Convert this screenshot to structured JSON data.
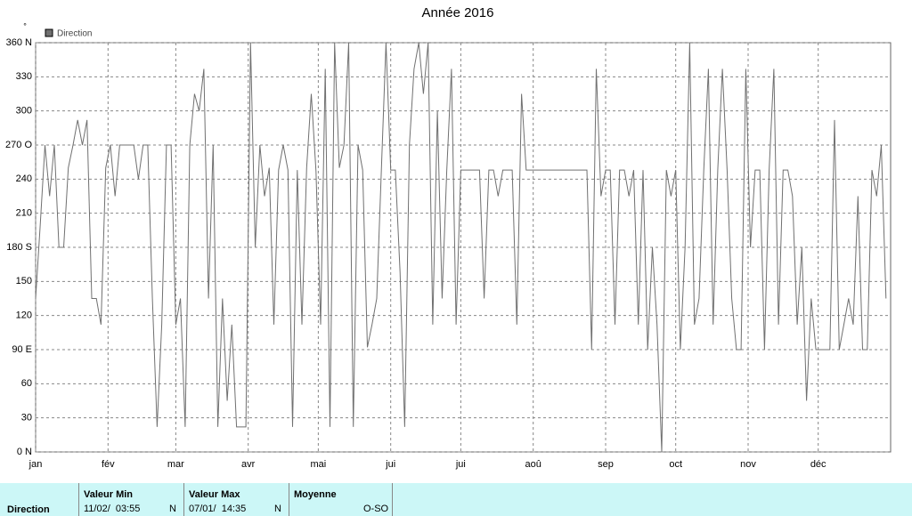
{
  "chart_data": {
    "type": "line",
    "title": "Année 2016",
    "ylabel": "°",
    "x": [
      0,
      2,
      4,
      6,
      8,
      10,
      12,
      14,
      16,
      18,
      20,
      22,
      24,
      26,
      28,
      30,
      32,
      34,
      36,
      38,
      40,
      42,
      44,
      46,
      48,
      50,
      52,
      54,
      56,
      58,
      60,
      62,
      64,
      66,
      68,
      70,
      72,
      74,
      76,
      78,
      80,
      82,
      84,
      86,
      88,
      90,
      92,
      94,
      96,
      98,
      100,
      102,
      104,
      106,
      108,
      110,
      112,
      114,
      116,
      118,
      120,
      122,
      124,
      126,
      128,
      130,
      132,
      134,
      136,
      138,
      140,
      142,
      144,
      146,
      148,
      150,
      152,
      154,
      156,
      158,
      160,
      162,
      164,
      166,
      168,
      170,
      172,
      174,
      176,
      178,
      180,
      182,
      184,
      186,
      188,
      190,
      192,
      194,
      196,
      198,
      200,
      202,
      204,
      206,
      208,
      210,
      212,
      214,
      216,
      218,
      220,
      222,
      224,
      226,
      228,
      230,
      232,
      234,
      236,
      238,
      240,
      242,
      244,
      246,
      248,
      250,
      252,
      254,
      256,
      258,
      260,
      262,
      264,
      266,
      268,
      270,
      272,
      274,
      276,
      278,
      280,
      282,
      284,
      286,
      288,
      290,
      292,
      294,
      296,
      298,
      300,
      302,
      304,
      306,
      308,
      310,
      312,
      314,
      316,
      318,
      320,
      322,
      324,
      326,
      328,
      330,
      332,
      334,
      336,
      338,
      340,
      342,
      344,
      346,
      348,
      350,
      352,
      354,
      356,
      358,
      360,
      362,
      364
    ],
    "series": [
      {
        "name": "Direction",
        "color": "#707070",
        "values": [
          135,
          200,
          270,
          225,
          270,
          180,
          180,
          250,
          270,
          292,
          270,
          292,
          135,
          135,
          112,
          250,
          270,
          225,
          270,
          270,
          270,
          270,
          240,
          270,
          270,
          135,
          22,
          112,
          270,
          270,
          112,
          135,
          22,
          270,
          315,
          300,
          337,
          135,
          270,
          22,
          135,
          45,
          112,
          22,
          22,
          22,
          360,
          180,
          270,
          225,
          250,
          112,
          248,
          270,
          248,
          22,
          248,
          112,
          250,
          315,
          247,
          112,
          337,
          22,
          360,
          250,
          270,
          360,
          22,
          270,
          248,
          92,
          112,
          135,
          248,
          360,
          248,
          248,
          158,
          22,
          270,
          337,
          360,
          315,
          360,
          112,
          300,
          135,
          247,
          337,
          112,
          248,
          248,
          248,
          248,
          248,
          135,
          248,
          248,
          225,
          248,
          248,
          248,
          112,
          315,
          248,
          248,
          248,
          248,
          248,
          248,
          248,
          248,
          248,
          248,
          248,
          248,
          248,
          248,
          90,
          337,
          225,
          248,
          248,
          112,
          248,
          248,
          225,
          248,
          112,
          248,
          90,
          180,
          112,
          0,
          248,
          225,
          248,
          90,
          180,
          360,
          112,
          135,
          248,
          337,
          112,
          248,
          337,
          248,
          135,
          90,
          90,
          337,
          180,
          248,
          248,
          90,
          248,
          337,
          112,
          248,
          248,
          225,
          112,
          180,
          45,
          135,
          90,
          90,
          90,
          90,
          292,
          90,
          112,
          135,
          112,
          225,
          90,
          90,
          248,
          225,
          270,
          135
        ]
      }
    ],
    "xlim": [
      0,
      366
    ],
    "xticks": [
      {
        "value": 0,
        "label": "jan"
      },
      {
        "value": 31,
        "label": "fév"
      },
      {
        "value": 60,
        "label": "mar"
      },
      {
        "value": 91,
        "label": "avr"
      },
      {
        "value": 121,
        "label": "mai"
      },
      {
        "value": 152,
        "label": "jui"
      },
      {
        "value": 182,
        "label": "jui"
      },
      {
        "value": 213,
        "label": "aoû"
      },
      {
        "value": 244,
        "label": "sep"
      },
      {
        "value": 274,
        "label": "oct"
      },
      {
        "value": 305,
        "label": "nov"
      },
      {
        "value": 335,
        "label": "déc"
      }
    ],
    "ylim": [
      0,
      360
    ],
    "yticks": [
      {
        "value": 0,
        "label": "0 N"
      },
      30,
      60,
      {
        "value": 90,
        "label": "90  E"
      },
      120,
      150,
      {
        "value": 180,
        "label": "180 S"
      },
      210,
      240,
      {
        "value": 270,
        "label": "270 O"
      },
      300,
      330,
      {
        "value": 360,
        "label": "360 N"
      }
    ],
    "grid": true
  },
  "stats": {
    "name": "Direction",
    "min": {
      "title": "Valeur Min",
      "date": "11/02/  03:55",
      "dir": "N"
    },
    "max": {
      "title": "Valeur Max",
      "date": "07/01/  14:35",
      "dir": "N"
    },
    "mean": {
      "title": "Moyenne",
      "value": "O-SO"
    }
  }
}
